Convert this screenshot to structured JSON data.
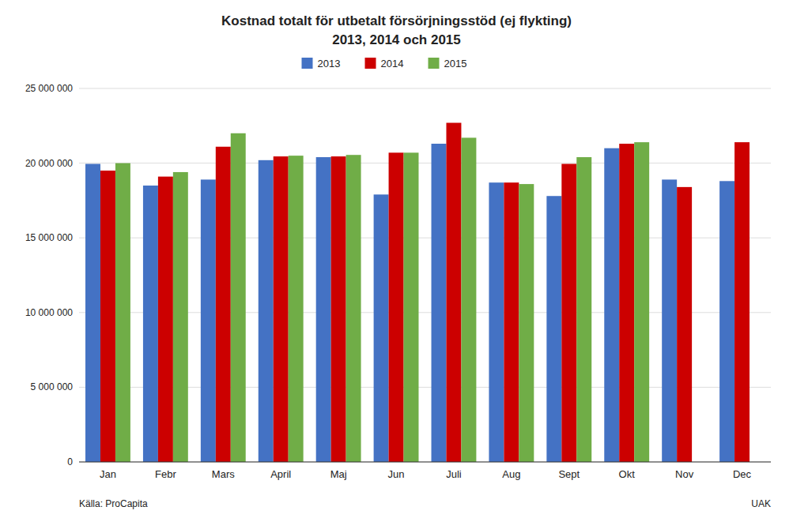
{
  "chart_data": {
    "type": "bar",
    "title": "Kostnad totalt för utbetalt försörjningsstöd (ej flykting)",
    "subtitle": "2013, 2014 och 2015",
    "categories": [
      "Jan",
      "Febr",
      "Mars",
      "April",
      "Maj",
      "Jun",
      "Juli",
      "Aug",
      "Sept",
      "Okt",
      "Nov",
      "Dec"
    ],
    "series": [
      {
        "name": "2013",
        "color": "#4472C4",
        "values": [
          19950000,
          18500000,
          18900000,
          20200000,
          20400000,
          17900000,
          21300000,
          18700000,
          17800000,
          21000000,
          18900000,
          18800000
        ]
      },
      {
        "name": "2014",
        "color": "#CC0000",
        "values": [
          19500000,
          19100000,
          21100000,
          20450000,
          20450000,
          20700000,
          22700000,
          18700000,
          19950000,
          21300000,
          18400000,
          21400000
        ]
      },
      {
        "name": "2015",
        "color": "#70AD47",
        "values": [
          20000000,
          19400000,
          22000000,
          20500000,
          20550000,
          20700000,
          21700000,
          18600000,
          20400000,
          21400000,
          null,
          null
        ]
      }
    ],
    "ylim": [
      0,
      25000000
    ],
    "yticks": [
      0,
      {
        "value": 5000000,
        "label": "5 000 000"
      },
      {
        "value": 10000000,
        "label": "10 000 000"
      },
      {
        "value": 15000000,
        "label": "15 000 000"
      },
      {
        "value": 20000000,
        "label": "20 000 000"
      },
      {
        "value": 25000000,
        "label": "25 000 000"
      }
    ],
    "grid": true,
    "legend": "top",
    "annotations": [
      "Källa: ProCapita",
      "UAK"
    ]
  }
}
